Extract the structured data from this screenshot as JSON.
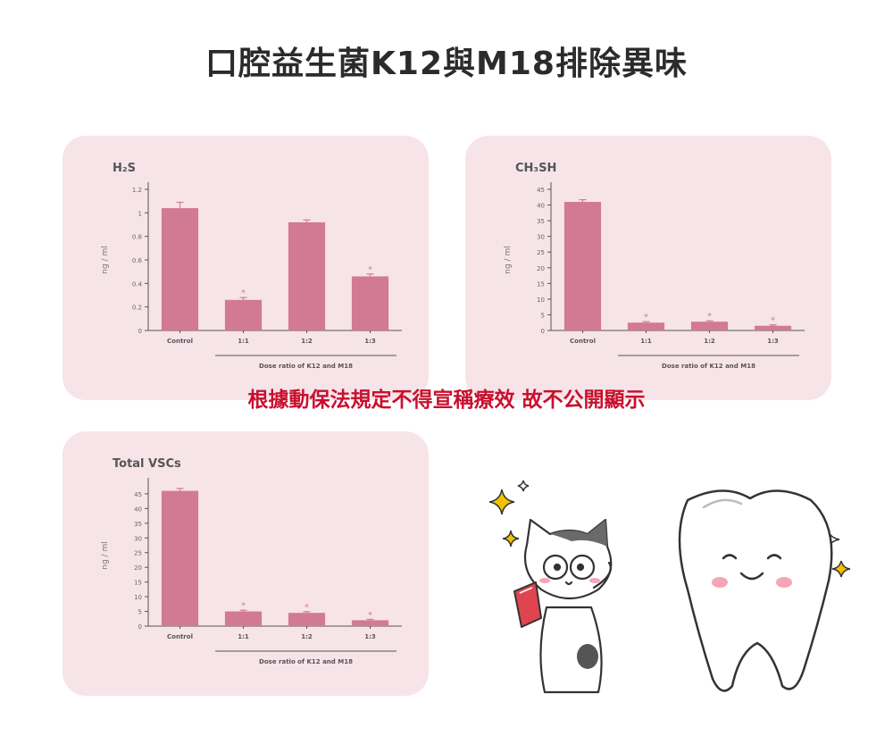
{
  "title": "口腔益生菌K12與M18排除異味",
  "notice": "根據動保法規定不得宣稱療效 故不公開顯示",
  "colors": {
    "bar": "#d27a93",
    "panel": "#f7e4e9",
    "notice": "#c8102e",
    "cheek": "#f4a6b6",
    "sparkle": "#f2c200"
  },
  "chart_data": [
    {
      "type": "bar",
      "title": "H₂S",
      "ylabel": "ng / ml",
      "xlabel": "Dose ratio of K12 and M18",
      "categories": [
        "Control",
        "1:1",
        "1:2",
        "1:3"
      ],
      "values": [
        1.04,
        0.26,
        0.92,
        0.46
      ],
      "errors": [
        0.05,
        0.02,
        0.02,
        0.02
      ],
      "significant": [
        false,
        true,
        false,
        true
      ],
      "yticks": [
        "1.2",
        "1",
        "0.8",
        "0.6",
        "0.4",
        "0.2",
        "0"
      ],
      "ylim": [
        0,
        1.2
      ]
    },
    {
      "type": "bar",
      "title": "CH₃SH",
      "ylabel": "ng / ml",
      "xlabel": "Dose ratio of K12 and M18",
      "categories": [
        "Control",
        "1:1",
        "1:2",
        "1:3"
      ],
      "values": [
        41,
        2.5,
        2.8,
        1.5
      ],
      "errors": [
        0.7,
        0.3,
        0.3,
        0.3
      ],
      "significant": [
        false,
        true,
        true,
        true
      ],
      "yticks": [
        "45",
        "40",
        "35",
        "30",
        "25",
        "20",
        "15",
        "10",
        "5",
        "0"
      ],
      "ylim": [
        0,
        45
      ]
    },
    {
      "type": "bar",
      "title": "Total VSCs",
      "ylabel": "ng / ml",
      "xlabel": "Dose ratio of K12 and M18",
      "categories": [
        "Control",
        "1:1",
        "1:2",
        "1:3"
      ],
      "values": [
        46,
        5,
        4.5,
        2
      ],
      "errors": [
        0.8,
        0.4,
        0.4,
        0.3
      ],
      "significant": [
        false,
        true,
        true,
        true
      ],
      "yticks": [
        "45",
        "40",
        "35",
        "30",
        "25",
        "20",
        "15",
        "10",
        "5",
        "0"
      ],
      "ylim": [
        0,
        48
      ]
    }
  ],
  "illustration": {
    "characters": [
      "cat-character-icon",
      "tooth-character-icon"
    ],
    "book": "red-book-icon"
  }
}
